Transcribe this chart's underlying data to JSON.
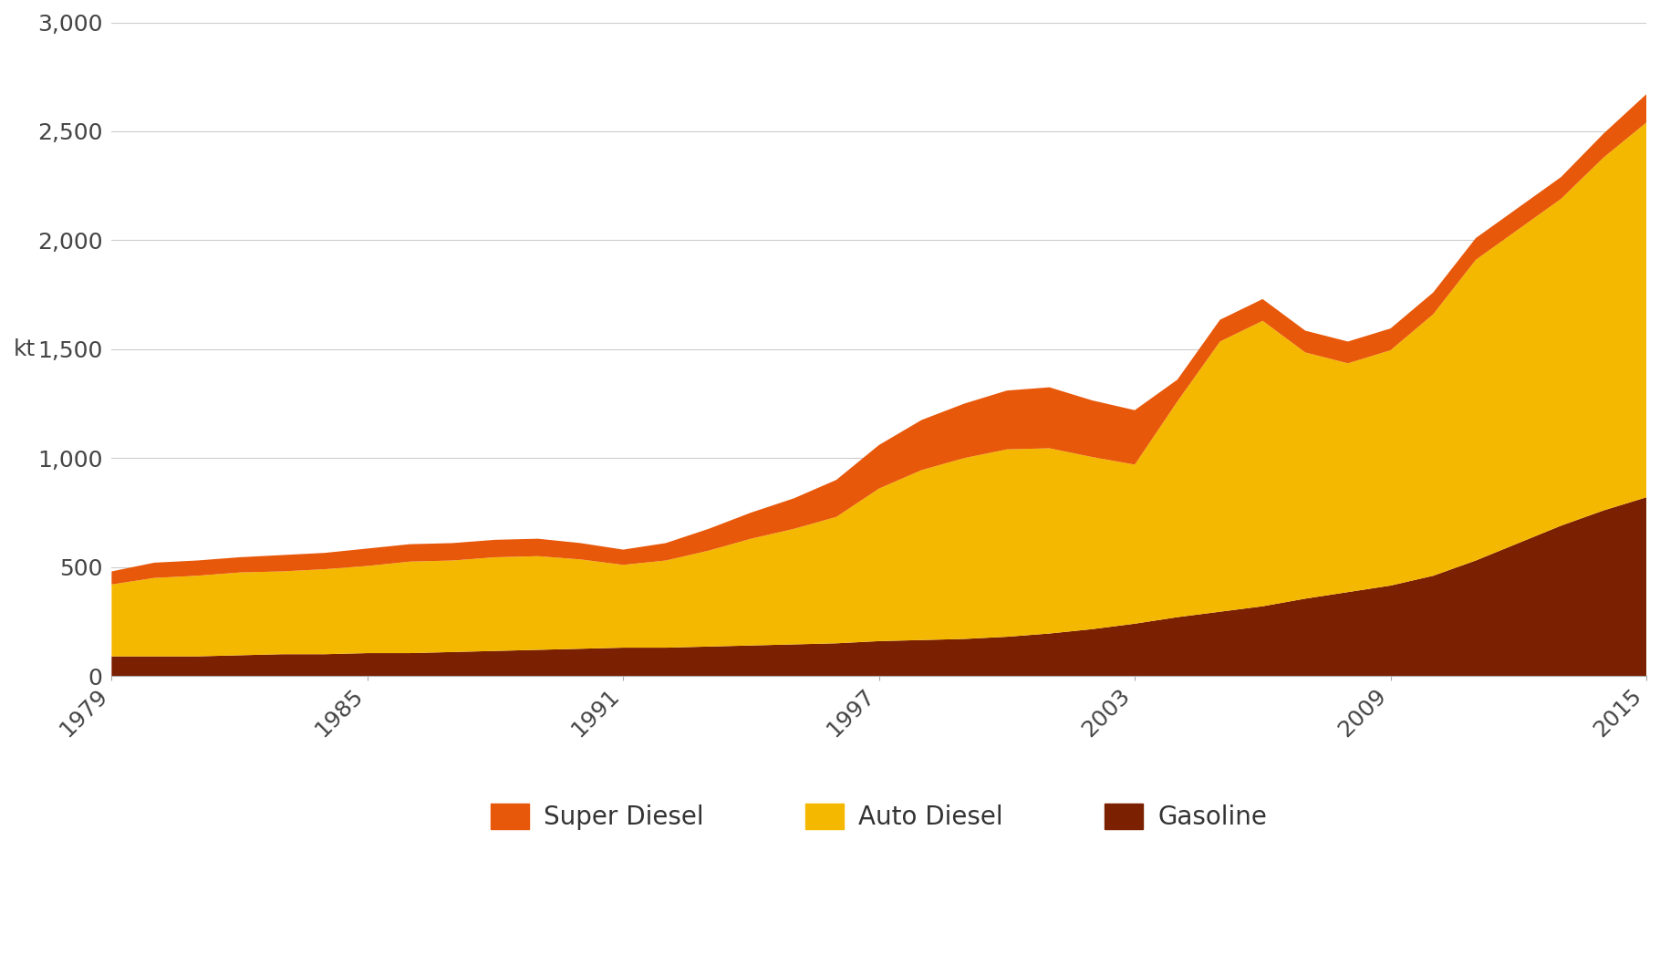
{
  "years": [
    1979,
    1980,
    1981,
    1982,
    1983,
    1984,
    1985,
    1986,
    1987,
    1988,
    1989,
    1990,
    1991,
    1992,
    1993,
    1994,
    1995,
    1996,
    1997,
    1998,
    1999,
    2000,
    2001,
    2002,
    2003,
    2004,
    2005,
    2006,
    2007,
    2008,
    2009,
    2010,
    2011,
    2012,
    2013,
    2014,
    2015
  ],
  "gasoline": [
    90,
    90,
    90,
    95,
    100,
    100,
    105,
    105,
    110,
    115,
    120,
    125,
    130,
    130,
    135,
    140,
    145,
    150,
    160,
    165,
    170,
    180,
    195,
    215,
    240,
    270,
    295,
    320,
    355,
    385,
    415,
    460,
    530,
    610,
    690,
    760,
    820
  ],
  "auto_diesel": [
    330,
    360,
    370,
    380,
    380,
    390,
    400,
    420,
    420,
    430,
    430,
    410,
    380,
    400,
    440,
    490,
    530,
    580,
    700,
    780,
    830,
    860,
    850,
    790,
    730,
    990,
    1240,
    1310,
    1130,
    1050,
    1080,
    1200,
    1380,
    1440,
    1500,
    1620,
    1720
  ],
  "super_diesel": [
    60,
    70,
    70,
    70,
    75,
    75,
    80,
    80,
    80,
    80,
    80,
    75,
    70,
    80,
    100,
    120,
    140,
    170,
    200,
    230,
    250,
    270,
    280,
    260,
    250,
    100,
    100,
    100,
    100,
    100,
    100,
    100,
    100,
    100,
    100,
    110,
    130
  ],
  "super_diesel_color": "#E8580A",
  "auto_diesel_color": "#F5B800",
  "gasoline_color": "#7B2000",
  "background_color": "#FFFFFF",
  "ylabel": "kt",
  "ylim": [
    0,
    3000
  ],
  "yticks": [
    0,
    500,
    1000,
    1500,
    2000,
    2500,
    3000
  ],
  "ytick_labels": [
    "0",
    "500",
    "1,000",
    "1,500",
    "2,000",
    "2,500",
    "3,000"
  ],
  "xlim": [
    1979,
    2015
  ],
  "xticks": [
    1979,
    1985,
    1991,
    1997,
    2003,
    2009,
    2015
  ],
  "legend_labels": [
    "Super Diesel",
    "Auto Diesel",
    "Gasoline"
  ],
  "grid_color": "#CCCCCC"
}
